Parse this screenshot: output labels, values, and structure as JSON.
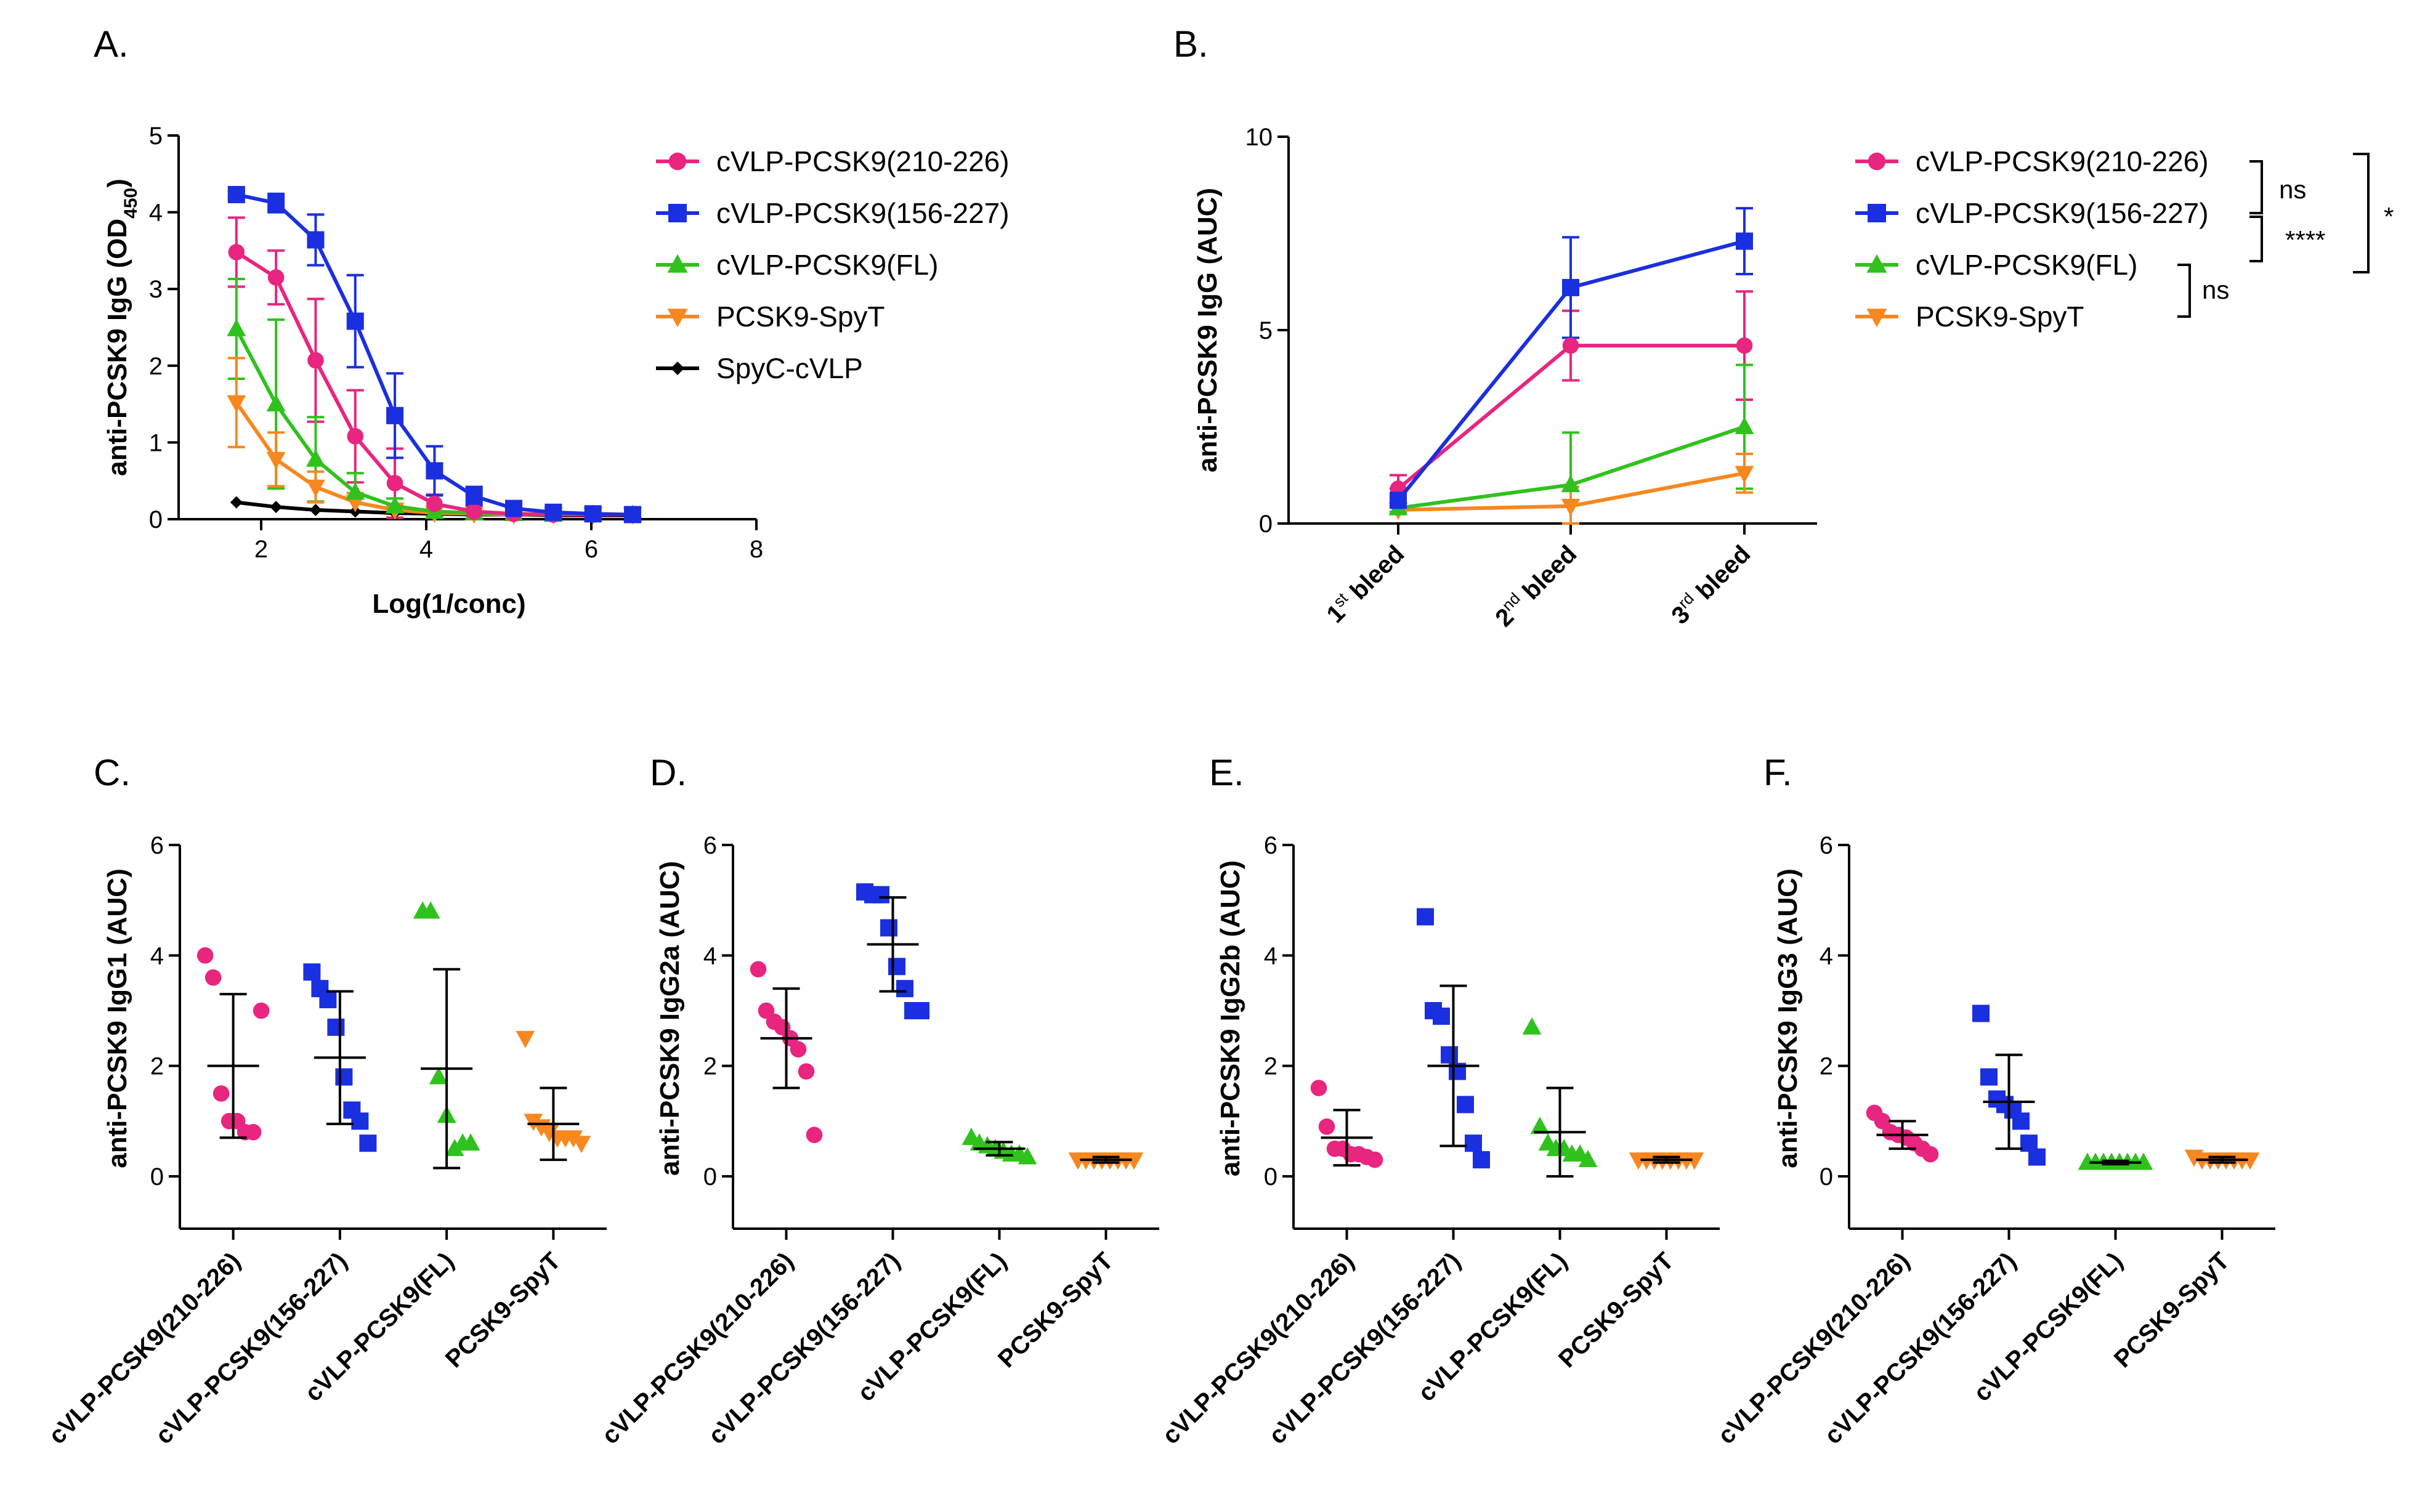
{
  "colors": {
    "pink": "#e8257f",
    "blue": "#1a2fe0",
    "green": "#2fc21c",
    "orange": "#f7871f",
    "black": "#000000"
  },
  "chart_data": [
    {
      "panel": "A.",
      "type": "line",
      "xlabel": "Log(1/conc)",
      "ylabel_main": "anti-PCSK9 IgG (OD",
      "ylabel_sub": "450",
      "ylabel_end": ")",
      "xlim": [
        1,
        8
      ],
      "ylim": [
        0,
        5
      ],
      "xticks": [
        "2",
        "4",
        "6",
        "8"
      ],
      "yticks": [
        "0",
        "1",
        "2",
        "3",
        "4",
        "5"
      ],
      "x": [
        1.7,
        2.18,
        2.66,
        3.14,
        3.62,
        4.1,
        4.58,
        5.06,
        5.54,
        6.02,
        6.5
      ],
      "series": [
        {
          "name": "cVLP-PCSK9(210-226)",
          "marker": "circle",
          "color": "#e8257f",
          "values": [
            3.48,
            3.15,
            2.07,
            1.08,
            0.47,
            0.2,
            0.1,
            0.07,
            0.06,
            0.06,
            0.06
          ],
          "err": [
            0.45,
            0.35,
            0.8,
            0.6,
            0.45,
            0.12,
            0.05,
            0.03,
            0.02,
            0.02,
            0.02
          ]
        },
        {
          "name": "cVLP-PCSK9(156-227)",
          "marker": "square",
          "color": "#1a2fe0",
          "values": [
            4.23,
            4.12,
            3.64,
            2.58,
            1.35,
            0.63,
            0.3,
            0.14,
            0.09,
            0.07,
            0.06
          ],
          "err": [
            0.05,
            0.12,
            0.33,
            0.6,
            0.55,
            0.32,
            0.12,
            0.06,
            0.03,
            0.02,
            0.02
          ]
        },
        {
          "name": "cVLP-PCSK9(FL)",
          "marker": "triangle",
          "color": "#2fc21c",
          "values": [
            2.48,
            1.5,
            0.78,
            0.35,
            0.17,
            0.1,
            0.08,
            0.07,
            0.06,
            0.06,
            0.06
          ],
          "err": [
            0.65,
            1.1,
            0.55,
            0.25,
            0.1,
            0.05,
            0.03,
            0.02,
            0.02,
            0.02,
            0.02
          ]
        },
        {
          "name": "PCSK9-SpyT",
          "marker": "triangle-down",
          "color": "#f7871f",
          "values": [
            1.52,
            0.78,
            0.42,
            0.22,
            0.12,
            0.08,
            0.07,
            0.06,
            0.06,
            0.06,
            0.06
          ],
          "err": [
            0.58,
            0.35,
            0.2,
            0.12,
            0.05,
            0.03,
            0.02,
            0.02,
            0.02,
            0.02,
            0.02
          ]
        },
        {
          "name": "SpyC-cVLP",
          "marker": "diamond",
          "color": "#000000",
          "values": [
            0.22,
            0.16,
            0.12,
            0.1,
            0.08,
            0.07,
            0.06,
            0.06,
            0.05,
            0.05,
            0.05
          ],
          "err": [
            0,
            0,
            0,
            0,
            0,
            0,
            0,
            0,
            0,
            0,
            0
          ]
        }
      ]
    },
    {
      "panel": "B.",
      "type": "line",
      "ylabel": "anti-PCSK9 IgG (AUC)",
      "ylim": [
        0,
        10
      ],
      "yticks": [
        "0",
        "5",
        "10"
      ],
      "categories": [
        {
          "num": "1",
          "sup": "st",
          "rest": " bleed"
        },
        {
          "num": "2",
          "sup": "nd",
          "rest": " bleed"
        },
        {
          "num": "3",
          "sup": "rd",
          "rest": " bleed"
        }
      ],
      "series": [
        {
          "name": "cVLP-PCSK9(210-226)",
          "marker": "circle",
          "color": "#e8257f",
          "values": [
            0.9,
            4.6,
            4.6
          ],
          "err": [
            0.35,
            0.9,
            1.4
          ]
        },
        {
          "name": "cVLP-PCSK9(156-227)",
          "marker": "square",
          "color": "#1a2fe0",
          "values": [
            0.6,
            6.1,
            7.3
          ],
          "err": [
            0.3,
            1.3,
            0.85
          ]
        },
        {
          "name": "cVLP-PCSK9(FL)",
          "marker": "triangle",
          "color": "#2fc21c",
          "values": [
            0.4,
            1.0,
            2.5
          ],
          "err": [
            0.1,
            1.35,
            1.6
          ]
        },
        {
          "name": "PCSK9-SpyT",
          "marker": "triangle-down",
          "color": "#f7871f",
          "values": [
            0.35,
            0.45,
            1.3
          ],
          "err": [
            0.1,
            0.5,
            0.5
          ]
        }
      ],
      "significance": [
        {
          "label": "ns",
          "between": [
            "cVLP-PCSK9(210-226)",
            "cVLP-PCSK9(156-227)"
          ]
        },
        {
          "label": "****",
          "between": [
            "cVLP-PCSK9(156-227)",
            "cVLP-PCSK9(FL)"
          ]
        },
        {
          "label": "ns",
          "between": [
            "cVLP-PCSK9(FL)",
            "PCSK9-SpyT"
          ]
        },
        {
          "label": "*",
          "between": [
            "cVLP-PCSK9(210-226)",
            "cVLP-PCSK9(FL)"
          ]
        }
      ]
    },
    {
      "panel": "C.",
      "type": "scatter",
      "ylabel": "anti-PCSK9 IgG1 (AUC)",
      "ylim": [
        0,
        6
      ],
      "yticks": [
        "0",
        "2",
        "4",
        "6"
      ],
      "categories": [
        "cVLP-PCSK9(210-226)",
        "cVLP-PCSK9(156-227)",
        "cVLP-PCSK9(FL)",
        "PCSK9-SpyT"
      ],
      "groups": [
        {
          "marker": "circle",
          "color": "#e8257f",
          "points": [
            4.0,
            3.6,
            1.5,
            1.0,
            1.0,
            0.8,
            0.8,
            3.0
          ],
          "mean": 2.0,
          "sd": 1.3
        },
        {
          "marker": "square",
          "color": "#1a2fe0",
          "points": [
            3.7,
            3.4,
            3.2,
            2.7,
            1.8,
            1.2,
            1.0,
            0.6
          ],
          "mean": 2.15,
          "sd": 1.2
        },
        {
          "marker": "triangle",
          "color": "#2fc21c",
          "points": [
            4.8,
            4.8,
            1.8,
            1.1,
            0.5,
            0.6,
            0.6
          ],
          "mean": 1.95,
          "sd": 1.8
        },
        {
          "marker": "triangle-down",
          "color": "#f7871f",
          "points": [
            2.5,
            1.0,
            0.9,
            0.8,
            0.7,
            0.7,
            0.7,
            0.6
          ],
          "mean": 0.95,
          "sd": 0.65
        }
      ]
    },
    {
      "panel": "D.",
      "type": "scatter",
      "ylabel": "anti-PCSK9 IgG2a (AUC)",
      "ylim": [
        0,
        6
      ],
      "yticks": [
        "0",
        "2",
        "4",
        "6"
      ],
      "categories": [
        "cVLP-PCSK9(210-226)",
        "cVLP-PCSK9(156-227)",
        "cVLP-PCSK9(FL)",
        "PCSK9-SpyT"
      ],
      "groups": [
        {
          "marker": "circle",
          "color": "#e8257f",
          "points": [
            3.75,
            3.0,
            2.8,
            2.7,
            2.5,
            2.3,
            1.9,
            0.75
          ],
          "mean": 2.5,
          "sd": 0.9
        },
        {
          "marker": "square",
          "color": "#1a2fe0",
          "points": [
            5.15,
            5.1,
            5.1,
            4.5,
            3.8,
            3.4,
            3.0,
            3.0
          ],
          "mean": 4.2,
          "sd": 0.85
        },
        {
          "marker": "triangle",
          "color": "#2fc21c",
          "points": [
            0.7,
            0.6,
            0.55,
            0.5,
            0.45,
            0.4,
            0.4,
            0.35
          ],
          "mean": 0.5,
          "sd": 0.12
        },
        {
          "marker": "triangle-down",
          "color": "#f7871f",
          "points": [
            0.3,
            0.3,
            0.3,
            0.3,
            0.3,
            0.3,
            0.3,
            0.3
          ],
          "mean": 0.3,
          "sd": 0.05
        }
      ]
    },
    {
      "panel": "E.",
      "type": "scatter",
      "ylabel": "anti-PCSK9 IgG2b (AUC)",
      "ylim": [
        0,
        6
      ],
      "yticks": [
        "0",
        "2",
        "4",
        "6"
      ],
      "categories": [
        "cVLP-PCSK9(210-226)",
        "cVLP-PCSK9(156-227)",
        "cVLP-PCSK9(FL)",
        "PCSK9-SpyT"
      ],
      "groups": [
        {
          "marker": "circle",
          "color": "#e8257f",
          "points": [
            1.6,
            0.9,
            0.5,
            0.5,
            0.4,
            0.4,
            0.35,
            0.3
          ],
          "mean": 0.7,
          "sd": 0.5
        },
        {
          "marker": "square",
          "color": "#1a2fe0",
          "points": [
            4.7,
            3.0,
            2.9,
            2.2,
            1.9,
            1.3,
            0.6,
            0.3
          ],
          "mean": 2.0,
          "sd": 1.45
        },
        {
          "marker": "triangle",
          "color": "#2fc21c",
          "points": [
            2.7,
            0.9,
            0.6,
            0.5,
            0.5,
            0.4,
            0.4,
            0.3
          ],
          "mean": 0.8,
          "sd": 0.8
        },
        {
          "marker": "triangle-down",
          "color": "#f7871f",
          "points": [
            0.3,
            0.3,
            0.3,
            0.3,
            0.3,
            0.3,
            0.3,
            0.3
          ],
          "mean": 0.3,
          "sd": 0.05
        }
      ]
    },
    {
      "panel": "F.",
      "type": "scatter",
      "ylabel": "anti-PCSK9 IgG3 (AUC)",
      "ylim": [
        0,
        6
      ],
      "yticks": [
        "0",
        "2",
        "4",
        "6"
      ],
      "categories": [
        "cVLP-PCSK9(210-226)",
        "cVLP-PCSK9(156-227)",
        "cVLP-PCSK9(FL)",
        "PCSK9-SpyT"
      ],
      "groups": [
        {
          "marker": "circle",
          "color": "#e8257f",
          "points": [
            1.15,
            1.0,
            0.8,
            0.75,
            0.7,
            0.6,
            0.5,
            0.4
          ],
          "mean": 0.75,
          "sd": 0.25
        },
        {
          "marker": "square",
          "color": "#1a2fe0",
          "points": [
            2.95,
            1.8,
            1.4,
            1.3,
            1.2,
            1.0,
            0.6,
            0.35
          ],
          "mean": 1.35,
          "sd": 0.85
        },
        {
          "marker": "triangle",
          "color": "#2fc21c",
          "points": [
            0.25,
            0.25,
            0.25,
            0.25,
            0.25,
            0.25,
            0.25,
            0.25
          ],
          "mean": 0.25,
          "sd": 0.03
        },
        {
          "marker": "triangle-down",
          "color": "#f7871f",
          "points": [
            0.35,
            0.3,
            0.3,
            0.3,
            0.3,
            0.3,
            0.3,
            0.3
          ],
          "mean": 0.3,
          "sd": 0.05
        }
      ]
    }
  ]
}
